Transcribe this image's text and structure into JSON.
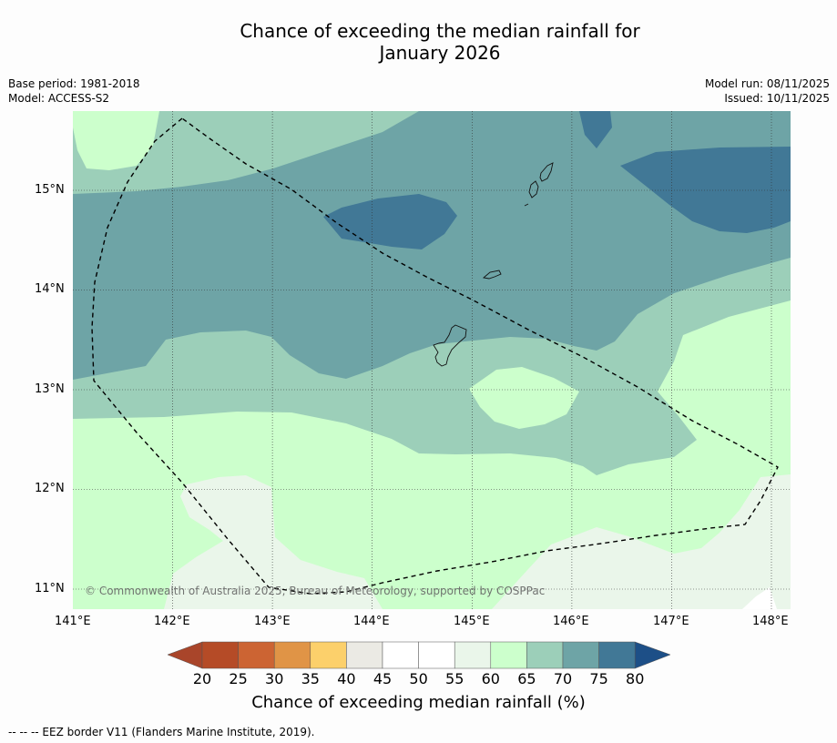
{
  "title_line1": "Chance of exceeding the median rainfall for",
  "title_line2": "January 2026",
  "meta": {
    "base_period": "Base period: 1981-2018",
    "model": "Model: ACCESS-S2",
    "model_run": "Model run: 08/11/2025",
    "issued": "Issued: 10/11/2025"
  },
  "map": {
    "lat_ticks": [
      "15°N",
      "14°N",
      "13°N",
      "12°N",
      "11°N"
    ],
    "lon_ticks": [
      "141°E",
      "142°E",
      "143°E",
      "144°E",
      "145°E",
      "146°E",
      "147°E",
      "148°E"
    ],
    "copyright": "© Commonwealth of Australia 2025, Bureau of Meteorology, supported by COSPPac"
  },
  "colorbar": {
    "colors": [
      "#a9452a",
      "#b54b27",
      "#cc6433",
      "#e09446",
      "#fcd06b",
      "#ebeae4",
      "#ffffff",
      "#ffffff",
      "#eaf6ea",
      "#ccffcc",
      "#9ccfb9",
      "#6ea4a6",
      "#417896",
      "#1d4f87"
    ],
    "ticks": [
      "20",
      "25",
      "30",
      "35",
      "40",
      "45",
      "50",
      "55",
      "60",
      "65",
      "70",
      "75",
      "80"
    ],
    "label": "Chance of exceeding median rainfall (%)"
  },
  "footer": "--  --  -- EEZ border V11 (Flanders Marine Institute, 2019)."
}
